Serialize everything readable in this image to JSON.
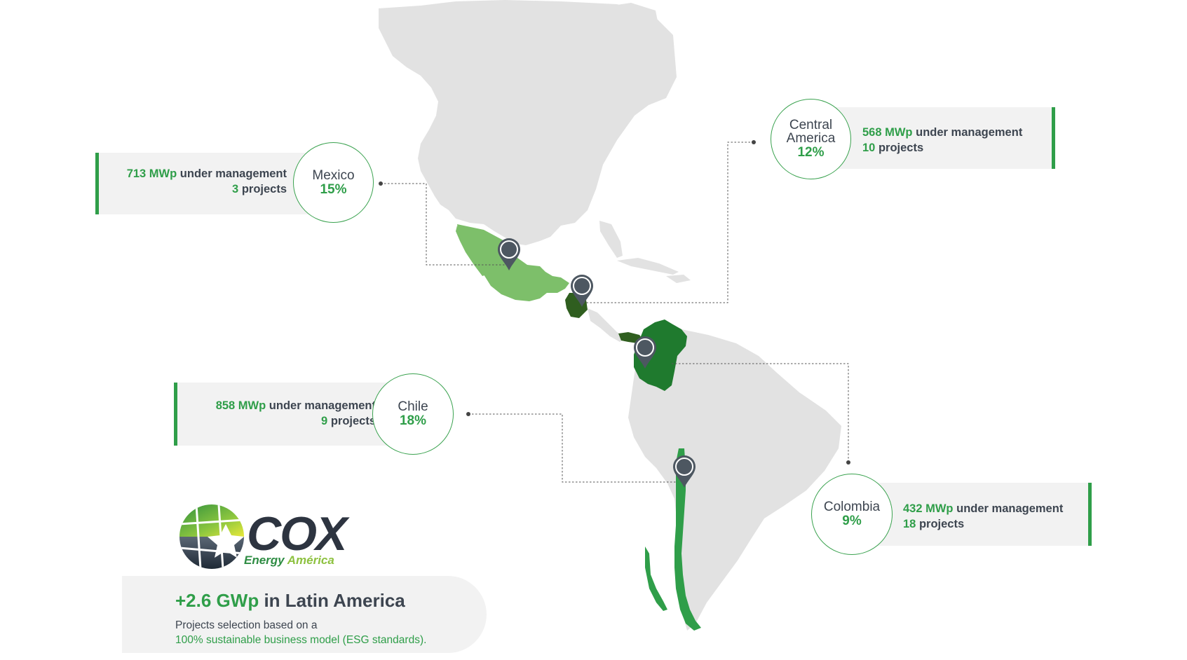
{
  "regions": {
    "mexico": {
      "name": "Mexico",
      "percent": "15%",
      "mwp": "713 MWp",
      "mwp_suffix": "under management",
      "projects_num": "3",
      "projects_suffix": "projects"
    },
    "central": {
      "name_line1": "Central",
      "name_line2": "America",
      "percent": "12%",
      "mwp": "568 MWp",
      "mwp_suffix": "under management",
      "projects_num": "10",
      "projects_suffix": "projects"
    },
    "chile": {
      "name": "Chile",
      "percent": "18%",
      "mwp": "858 MWp",
      "mwp_suffix": "under management",
      "projects_num": "9",
      "projects_suffix": "projects"
    },
    "colombia": {
      "name": "Colombia",
      "percent": "9%",
      "mwp": "432 MWp",
      "mwp_suffix": "under management",
      "projects_num": "18",
      "projects_suffix": "projects"
    }
  },
  "logo": {
    "wordmark": "COX",
    "sub1": "Energy",
    "sub2": "América"
  },
  "summary": {
    "headline_green": "+2.6 GWp",
    "headline_dark": "in Latin America",
    "line1": "Projects selection based on a",
    "line2": "100% sustainable business model (ESG standards)."
  },
  "colors": {
    "accent": "#2f9e49",
    "mexico_fill": "#7dbf6a",
    "central_fill": "#2f5e1f",
    "colombia_fill": "#1f7a2e",
    "chile_fill": "#2f9e49",
    "land": "#e2e2e2",
    "pin": "#4d5761",
    "text_dark": "#3d4550"
  }
}
